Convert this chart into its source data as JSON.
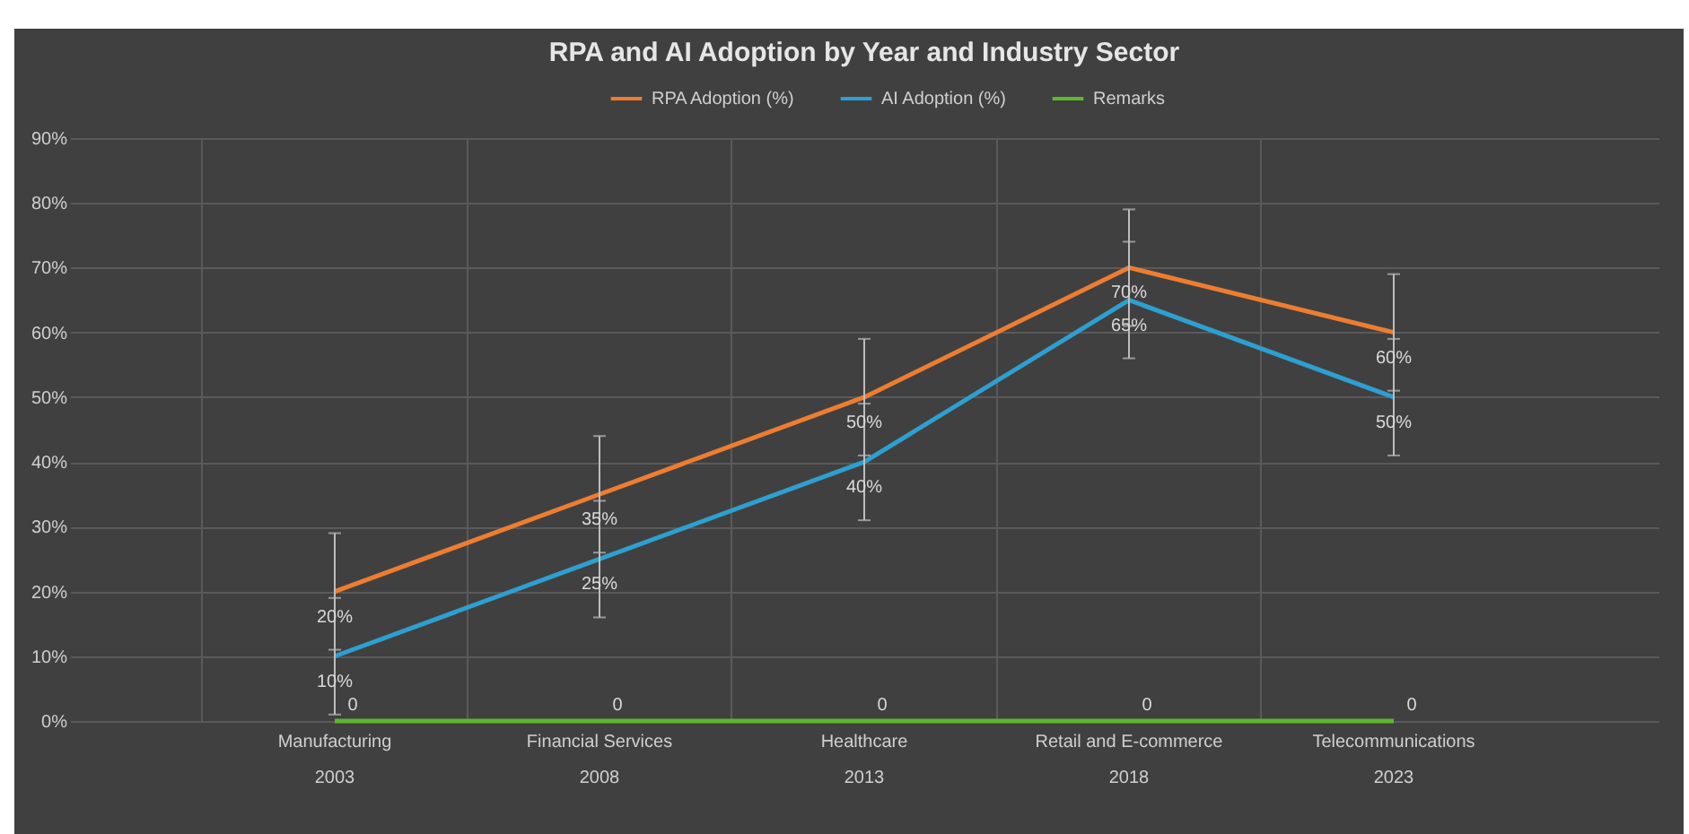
{
  "chart_data": {
    "type": "line",
    "title": "RPA and AI Adoption by Year and Industry Sector",
    "categories": [
      "Manufacturing\n2003",
      "Financial Services\n2008",
      "Healthcare\n2013",
      "Retail and E-commerce\n2018",
      "Telecommunications\n2023"
    ],
    "series": [
      {
        "name": "RPA Adoption (%)",
        "color": "#ed7d31",
        "values": [
          20,
          35,
          50,
          70,
          60
        ],
        "errors": [
          9,
          9,
          9,
          9,
          9
        ],
        "value_labels": [
          "20%",
          "35%",
          "50%",
          "70%",
          "60%"
        ]
      },
      {
        "name": "AI Adoption (%)",
        "color": "#2e9fd0",
        "values": [
          10,
          25,
          40,
          65,
          50
        ],
        "errors": [
          9,
          9,
          9,
          9,
          9
        ],
        "value_labels": [
          "10%",
          "25%",
          "40%",
          "65%",
          "50%"
        ]
      },
      {
        "name": "Remarks",
        "color": "#5cb82e",
        "values": [
          0,
          0,
          0,
          0,
          0
        ],
        "value_labels": [
          "0",
          "0",
          "0",
          "0",
          "0"
        ]
      }
    ],
    "ylim": [
      0,
      90
    ],
    "yticks": [
      {
        "value": 0,
        "label": "0%"
      },
      {
        "value": 10,
        "label": "10%"
      },
      {
        "value": 20,
        "label": "20%"
      },
      {
        "value": 30,
        "label": "30%"
      },
      {
        "value": 40,
        "label": "40%"
      },
      {
        "value": 50,
        "label": "50%"
      },
      {
        "value": 60,
        "label": "60%"
      },
      {
        "value": 70,
        "label": "70%"
      },
      {
        "value": 80,
        "label": "80%"
      },
      {
        "value": 90,
        "label": "90%"
      }
    ],
    "grid": true,
    "legend": "top",
    "marker": "none",
    "line_style": "solid"
  }
}
